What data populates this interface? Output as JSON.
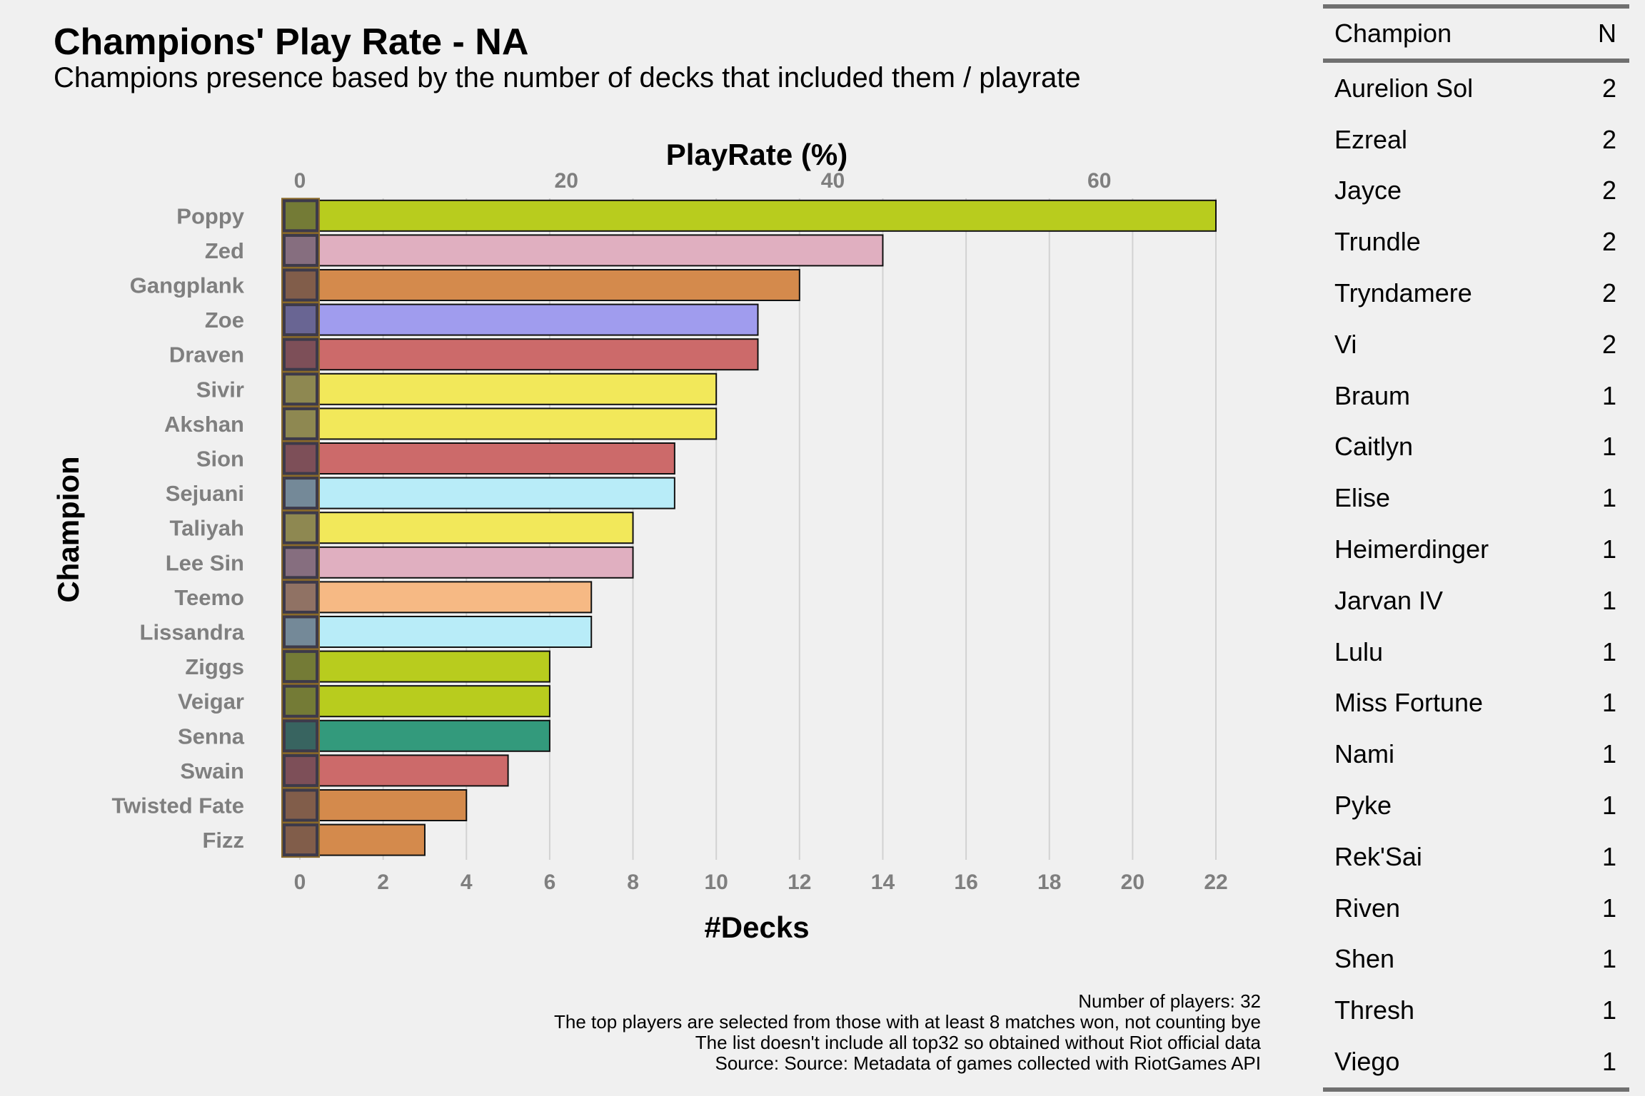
{
  "title": "Champions' Play Rate - NA",
  "subtitle": "Champions presence based by the number of decks that included them / playrate",
  "notes": [
    "Number of players: 32",
    "The top players are selected from those with at least 8 matches won, not counting bye",
    "The list doesn't include all top32 so obtained without Riot official data",
    "Source: Source: Metadata of games collected with RiotGames API"
  ],
  "chart_data": {
    "type": "bar",
    "orientation": "horizontal",
    "xlabel": "#Decks",
    "x2label": "PlayRate (%)",
    "ylabel": "Champion",
    "xlim": [
      0,
      22
    ],
    "x_ticks": [
      0,
      2,
      4,
      6,
      8,
      10,
      12,
      14,
      16,
      18,
      20,
      22
    ],
    "x2_ticks": [
      0,
      20,
      40,
      60
    ],
    "players": 32,
    "grid": "vertical",
    "categories": [
      "Poppy",
      "Zed",
      "Gangplank",
      "Zoe",
      "Draven",
      "Sivir",
      "Akshan",
      "Sion",
      "Sejuani",
      "Taliyah",
      "Lee Sin",
      "Teemo",
      "Lissandra",
      "Ziggs",
      "Veigar",
      "Senna",
      "Swain",
      "Twisted Fate",
      "Fizz"
    ],
    "values": [
      22,
      14,
      12,
      11,
      11,
      10,
      10,
      9,
      9,
      8,
      8,
      7,
      7,
      6,
      6,
      6,
      5,
      4,
      3
    ],
    "colors": [
      "#b8cc1e",
      "#e0afc0",
      "#d48a4c",
      "#a09cee",
      "#cc6a6a",
      "#f2e85a",
      "#f2e85a",
      "#cc6a6a",
      "#b8ecf8",
      "#f2e85a",
      "#e0afc0",
      "#f6b984",
      "#b8ecf8",
      "#b8cc1e",
      "#b8cc1e",
      "#339a7c",
      "#cc6a6a",
      "#d48a4c",
      "#d48a4c"
    ]
  },
  "table": {
    "headers": [
      "Champion",
      "N"
    ],
    "rows": [
      [
        "Aurelion Sol",
        "2"
      ],
      [
        "Ezreal",
        "2"
      ],
      [
        "Jayce",
        "2"
      ],
      [
        "Trundle",
        "2"
      ],
      [
        "Tryndamere",
        "2"
      ],
      [
        "Vi",
        "2"
      ],
      [
        "Braum",
        "1"
      ],
      [
        "Caitlyn",
        "1"
      ],
      [
        "Elise",
        "1"
      ],
      [
        "Heimerdinger",
        "1"
      ],
      [
        "Jarvan IV",
        "1"
      ],
      [
        "Lulu",
        "1"
      ],
      [
        "Miss Fortune",
        "1"
      ],
      [
        "Nami",
        "1"
      ],
      [
        "Pyke",
        "1"
      ],
      [
        "Rek'Sai",
        "1"
      ],
      [
        "Riven",
        "1"
      ],
      [
        "Shen",
        "1"
      ],
      [
        "Thresh",
        "1"
      ],
      [
        "Viego",
        "1"
      ]
    ]
  }
}
